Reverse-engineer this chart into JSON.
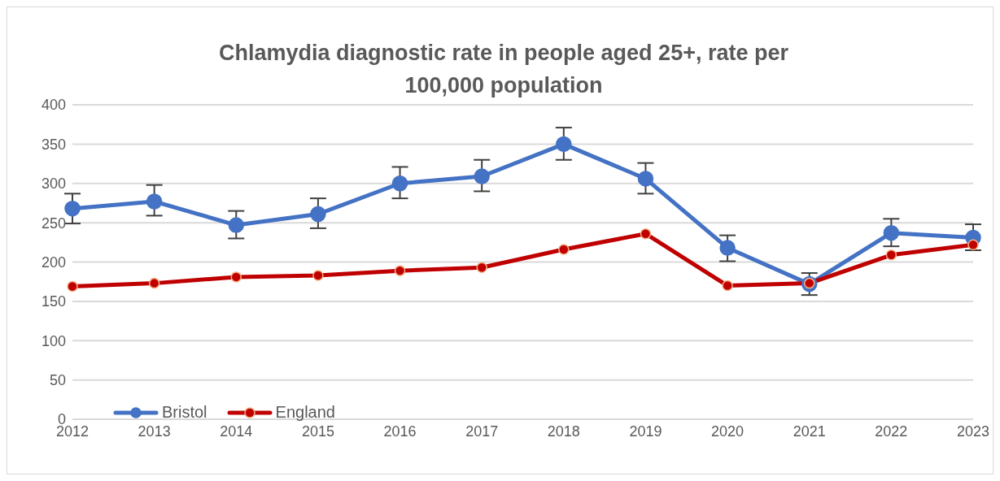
{
  "chart_data": {
    "type": "line",
    "title": "Chlamydia diagnostic rate in people aged 25+, rate per 100,000 population",
    "categories": [
      "2012",
      "2013",
      "2014",
      "2015",
      "2016",
      "2017",
      "2018",
      "2019",
      "2020",
      "2021",
      "2022",
      "2023"
    ],
    "series": [
      {
        "name": "Bristol",
        "color": "#4472c4",
        "values": [
          268,
          277,
          247,
          261,
          300,
          309,
          350,
          306,
          218,
          172,
          237,
          231
        ],
        "errors": [
          [
            249,
            287
          ],
          [
            259,
            298
          ],
          [
            230,
            265
          ],
          [
            243,
            281
          ],
          [
            281,
            321
          ],
          [
            290,
            330
          ],
          [
            330,
            371
          ],
          [
            287,
            326
          ],
          [
            201,
            234
          ],
          [
            158,
            186
          ],
          [
            220,
            255
          ],
          [
            215,
            248
          ]
        ]
      },
      {
        "name": "England",
        "color": "#c00000",
        "values": [
          169,
          173,
          181,
          183,
          189,
          193,
          216,
          236,
          170,
          173,
          209,
          222
        ]
      }
    ],
    "ylim": [
      0,
      400
    ],
    "yticks": [
      0,
      50,
      100,
      150,
      200,
      250,
      300,
      350,
      400
    ],
    "grid": "y",
    "legend": "bottom left",
    "marker": "circle",
    "line_style": "solid"
  }
}
